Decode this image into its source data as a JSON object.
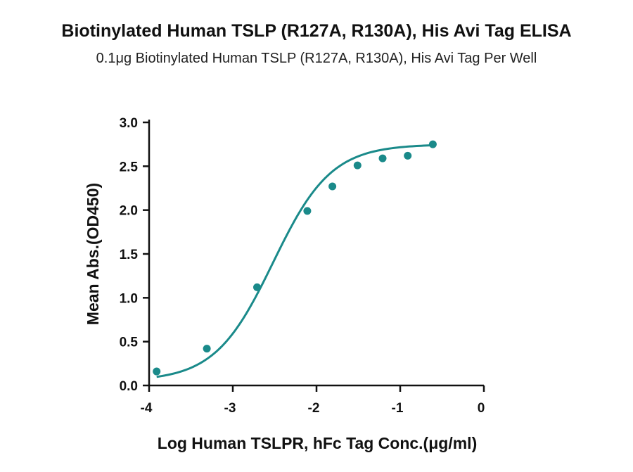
{
  "chart_data": {
    "type": "scatter",
    "title": "Biotinylated Human TSLP (R127A, R130A), His Avi Tag ELISA",
    "subtitle": "0.1μg Biotinylated Human TSLP (R127A, R130A), His Avi Tag Per Well",
    "xlabel": "Log Human TSLPR, hFc Tag Conc.(μg/ml)",
    "ylabel": "Mean Abs.(OD450)",
    "xlim": [
      -4,
      0
    ],
    "ylim": [
      0,
      3.0
    ],
    "xticks": [
      "-4",
      "-3",
      "-2",
      "-1",
      "0"
    ],
    "yticks": [
      "0.0",
      "0.5",
      "1.0",
      "1.5",
      "2.0",
      "2.5",
      "3.0"
    ],
    "grid": false,
    "series": [
      {
        "points": [
          {
            "x": -3.91,
            "y": 0.16
          },
          {
            "x": -3.31,
            "y": 0.42
          },
          {
            "x": -2.71,
            "y": 1.12
          },
          {
            "x": -2.11,
            "y": 1.99
          },
          {
            "x": -1.81,
            "y": 2.27
          },
          {
            "x": -1.51,
            "y": 2.51
          },
          {
            "x": -1.21,
            "y": 2.59
          },
          {
            "x": -0.91,
            "y": 2.62
          },
          {
            "x": -0.61,
            "y": 2.75
          }
        ],
        "fit": {
          "model": "4PL",
          "bottom": 0.05,
          "top": 2.75,
          "log_ec50": -2.52,
          "hill": 1.25,
          "x_range": [
            -3.91,
            -0.61
          ]
        }
      }
    ],
    "colors": {
      "series": "#1a8a8a",
      "axis": "#111111"
    }
  }
}
